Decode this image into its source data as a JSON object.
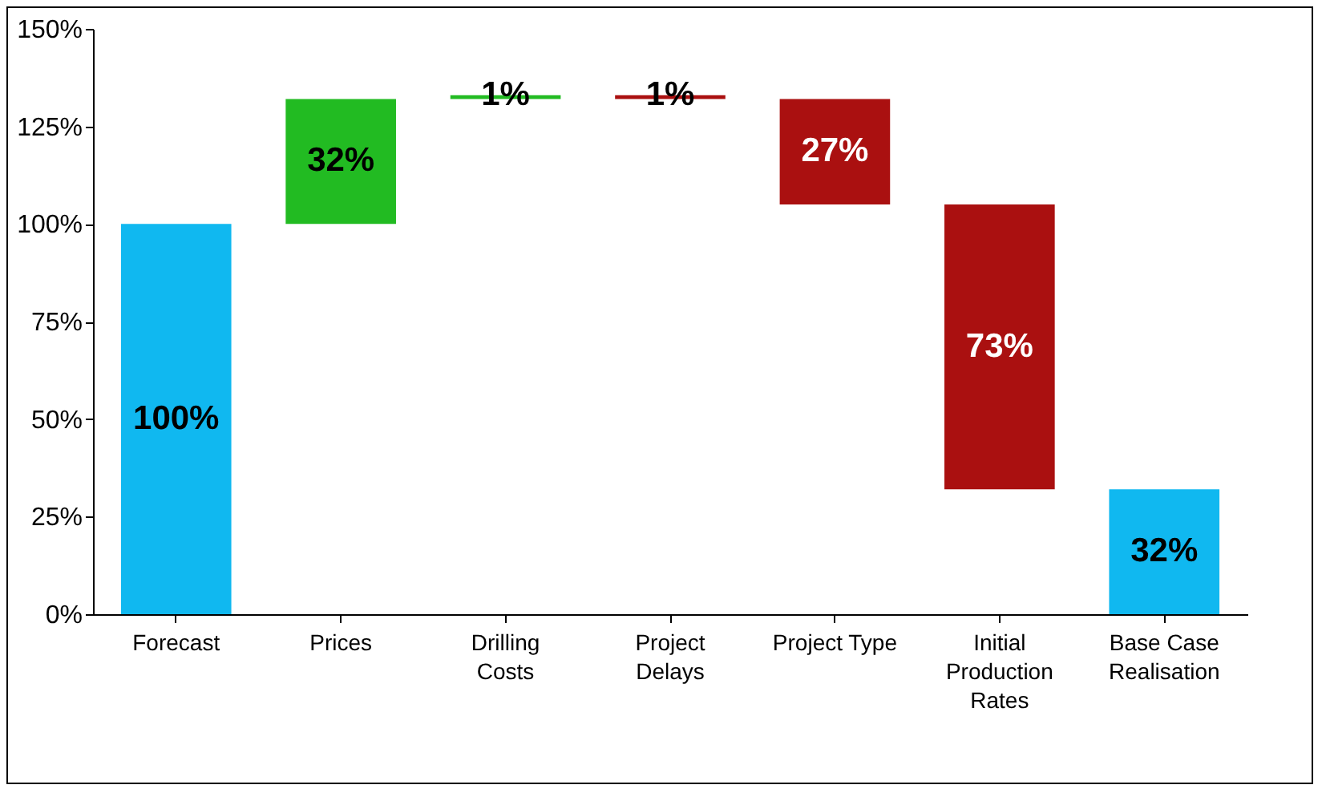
{
  "chart_data": {
    "type": "bar",
    "categories": [
      "Forecast",
      "Prices",
      "Drilling Costs",
      "Project Delays",
      "Project Type",
      "Initial Production Rates",
      "Base Case Realisation"
    ],
    "values": [
      100,
      32,
      1,
      -1,
      -27,
      -73,
      32
    ],
    "base": [
      0,
      100,
      132,
      133,
      132,
      105,
      0
    ],
    "colors": [
      "#10b8f0",
      "#22bb22",
      "#22bb22",
      "#aa1010",
      "#aa1010",
      "#aa1010",
      "#10b8f0"
    ],
    "value_labels": [
      "100%",
      "32%",
      "1%",
      "1%",
      "27%",
      "73%",
      "32%"
    ],
    "ylim": [
      0,
      150
    ],
    "yticks": [
      {
        "value": 0,
        "label": "0%"
      },
      {
        "value": 25,
        "label": "25%"
      },
      {
        "value": 50,
        "label": "50%"
      },
      {
        "value": 75,
        "label": "75%"
      },
      {
        "value": 100,
        "label": "100%"
      },
      {
        "value": 125,
        "label": "125%"
      },
      {
        "value": 150,
        "label": "150%"
      }
    ],
    "grid": false
  }
}
